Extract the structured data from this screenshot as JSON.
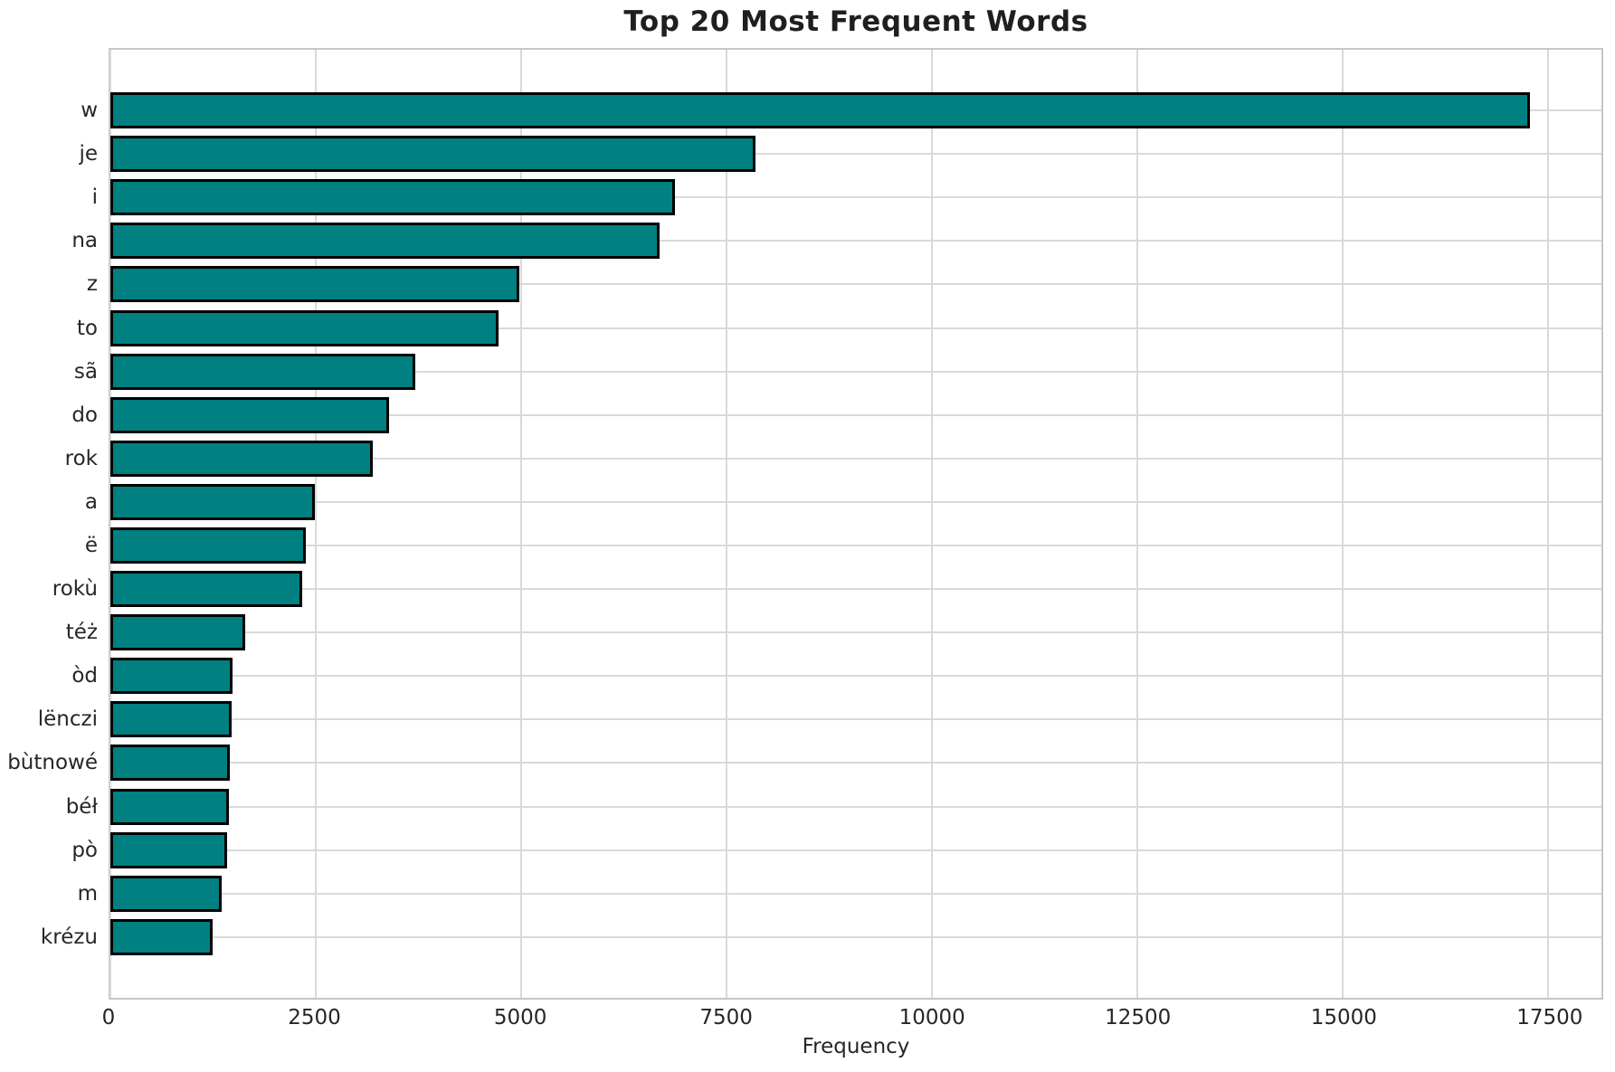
{
  "chart_data": {
    "type": "bar",
    "orientation": "horizontal",
    "title": "Top 20 Most Frequent Words",
    "xlabel": "Frequency",
    "ylabel": "",
    "categories": [
      "w",
      "je",
      "i",
      "na",
      "z",
      "to",
      "sã",
      "do",
      "rok",
      "a",
      "ë",
      "rokù",
      "téż",
      "òd",
      "lënczi",
      "bùtnowé",
      "béł",
      "pò",
      "m",
      "krézu"
    ],
    "values": [
      17280,
      7850,
      6870,
      6680,
      4980,
      4730,
      3710,
      3390,
      3190,
      2490,
      2380,
      2340,
      1640,
      1490,
      1480,
      1455,
      1445,
      1425,
      1350,
      1240
    ],
    "xlim": [
      0,
      18150
    ],
    "xticks": [
      0,
      2500,
      5000,
      7500,
      10000,
      12500,
      15000,
      17500
    ],
    "grid": "both",
    "legend": "none",
    "bar_color": "#008080",
    "bar_edge_color": "#000000"
  }
}
